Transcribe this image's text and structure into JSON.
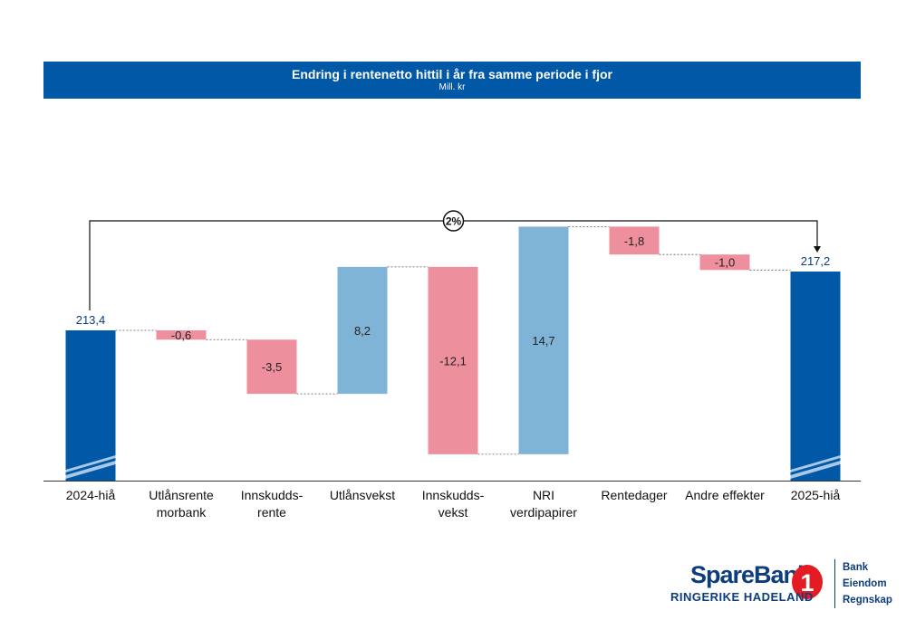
{
  "header": {
    "title": "Endring i rentenetto hittil i år fra samme periode i fjor",
    "subtitle": "Mill. kr"
  },
  "colors": {
    "header_bg": "#0058a6",
    "total": "#0058a6",
    "positive": "#7fb4d6",
    "negative": "#ee8f9e",
    "bracket": "#111111"
  },
  "chart_data": {
    "type": "waterfall",
    "title": "Endring i rentenetto hittil i år fra samme periode i fjor",
    "subtitle": "Mill. kr",
    "categories": [
      [
        "2024-hiå"
      ],
      [
        "Utlånsrente",
        "morbank"
      ],
      [
        "Innskudds-",
        "rente"
      ],
      [
        "Utlånsvekst"
      ],
      [
        "Innskudds-",
        "vekst"
      ],
      [
        "NRI",
        "verdipapirer"
      ],
      [
        "Rentedager"
      ],
      [
        "Andre effekter"
      ],
      [
        "2025-hiå"
      ]
    ],
    "values": [
      213.4,
      -0.6,
      -3.5,
      8.2,
      -12.1,
      14.7,
      -1.8,
      -1.0,
      217.2
    ],
    "labels": [
      "213,4",
      "-0,6",
      "-3,5",
      "8,2",
      "-12,1",
      "14,7",
      "-1,8",
      "-1,0",
      "217,2"
    ],
    "kinds": [
      "total",
      "change",
      "change",
      "change",
      "change",
      "change",
      "change",
      "change",
      "total"
    ],
    "change_label": "2%"
  },
  "logo": {
    "brand": "SpareBank",
    "badge": "1",
    "sub": "RINGERIKE HADELAND",
    "side": [
      "Bank",
      "Eiendom",
      "Regnskap"
    ]
  }
}
